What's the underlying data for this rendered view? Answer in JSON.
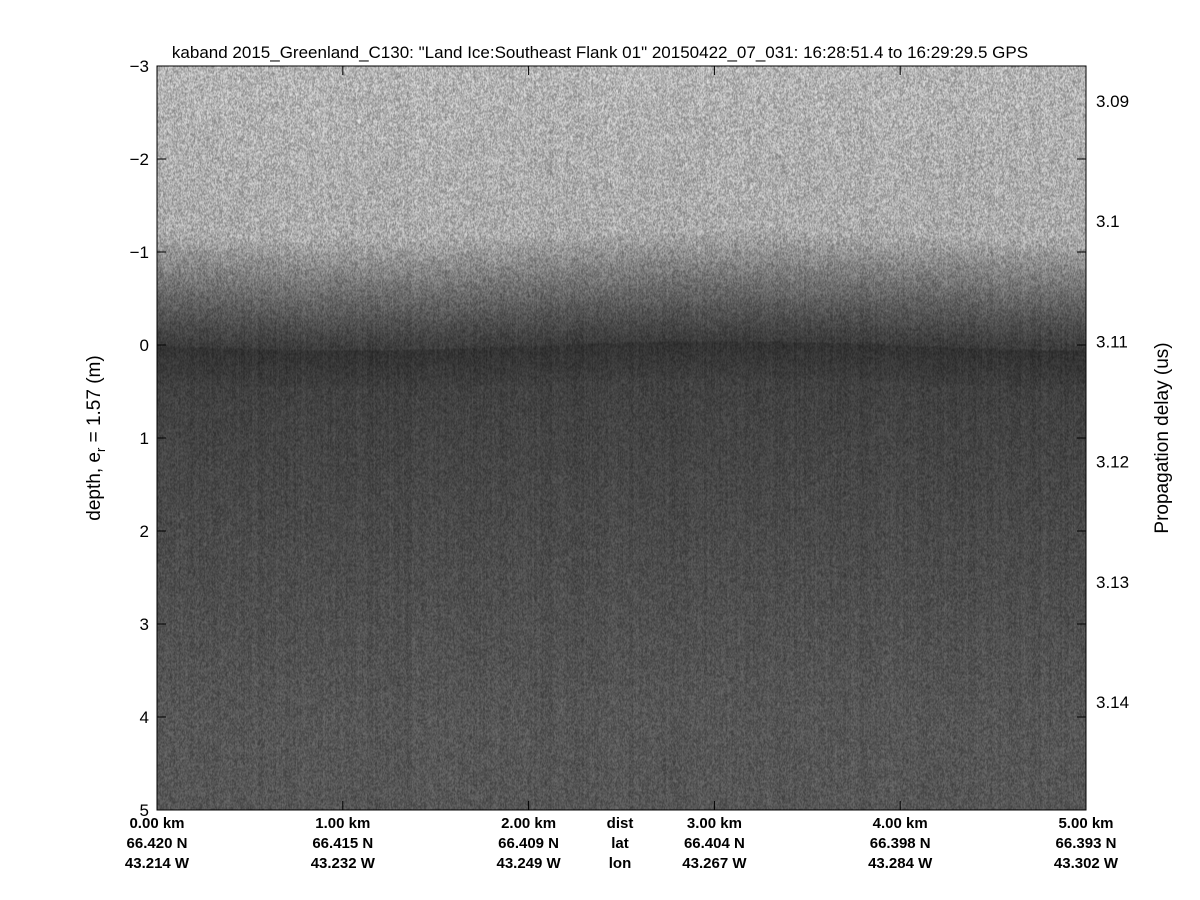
{
  "chart_data": {
    "type": "heatmap",
    "title": "kaband 2015_Greenland_C130: \"Land Ice:Southeast Flank 01\"  20150422_07_031: 16:28:51.4 to 16:29:29.5 GPS",
    "ylabel": "depth, e_r = 1.57 (m)",
    "ylabel_main": "depth, e",
    "ylabel_sub": "r",
    "ylabel_rest": " = 1.57 (m)",
    "y2label": "Propagation delay (us)",
    "ylim": [
      -3,
      5
    ],
    "y_reversed": true,
    "yticks": [
      "-3",
      "-2",
      "-1",
      "0",
      "1",
      "2",
      "3",
      "4",
      "5"
    ],
    "y2ticks": [
      "3.09",
      "3.1",
      "3.11",
      "3.12",
      "3.13",
      "3.14"
    ],
    "y2tick_values": [
      3.09,
      3.1,
      3.11,
      3.12,
      3.13,
      3.14
    ],
    "xlim_km": [
      0,
      5
    ],
    "colormap": "gray",
    "surface_depth_m": 0,
    "xaxis": {
      "row_labels": [
        "dist",
        "lat",
        "lon"
      ],
      "ticks": [
        {
          "dist": "0.00 km",
          "lat": "66.420 N",
          "lon": "43.214 W"
        },
        {
          "dist": "1.00 km",
          "lat": "66.415 N",
          "lon": "43.232 W"
        },
        {
          "dist": "2.00 km",
          "lat": "66.409 N",
          "lon": "43.249 W"
        },
        {
          "dist": "3.00 km",
          "lat": "66.404 N",
          "lon": "43.267 W"
        },
        {
          "dist": "4.00 km",
          "lat": "66.398 N",
          "lon": "43.284 W"
        },
        {
          "dist": "5.00 km",
          "lat": "66.393 N",
          "lon": "43.302 W"
        }
      ]
    }
  }
}
